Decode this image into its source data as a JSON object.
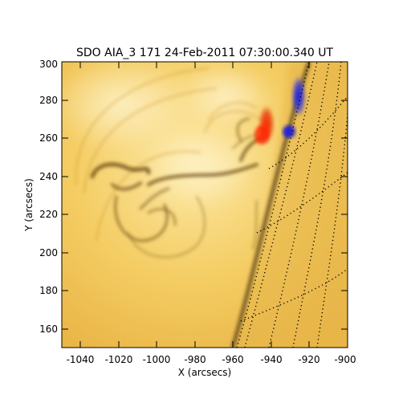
{
  "title": "SDO AIA_3 171 24-Feb-2011 07:30:00.340 UT",
  "x_axis": {
    "label": "X (arcsecs)",
    "range": [
      -1050,
      -900
    ],
    "ticks": [
      "-1040",
      "-1020",
      "-1000",
      "-980",
      "-960",
      "-940",
      "-920",
      "-900"
    ]
  },
  "y_axis": {
    "label": "Y (arcsecs)",
    "range": [
      150,
      300
    ],
    "ticks": [
      "160",
      "180",
      "200",
      "220",
      "240",
      "260",
      "280",
      "300"
    ]
  },
  "colors": {
    "disk_base": "#f2c85a",
    "disk_bright": "#fbe6a0",
    "structure_dark": "#6a4a12",
    "limb_dark": "#4a3510",
    "overlay_red": "#e83a10",
    "overlay_blue": "#2a2ad8"
  },
  "grid": "dotted heliographic coordinate grid"
}
